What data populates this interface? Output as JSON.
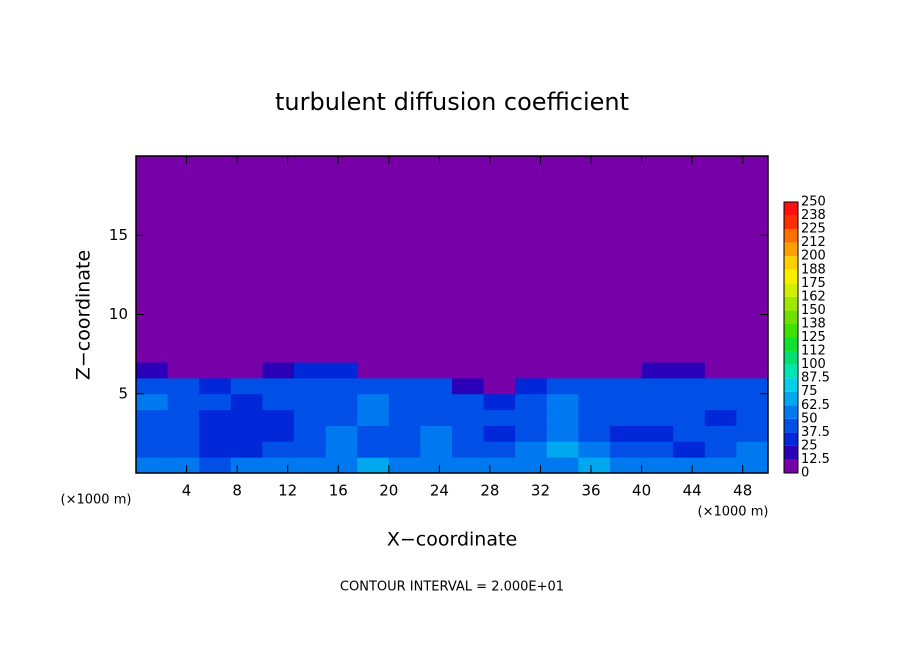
{
  "chart_data": {
    "type": "contour",
    "title": "turbulent diffusion coefficient",
    "x_label": "X−coordinate",
    "y_label": "Z−coordinate",
    "x_unit_label": "(×1000 m)",
    "y_unit_label": "(×1000 m)",
    "footer": "CONTOUR INTERVAL = 2.000E+01",
    "xlim": [
      0,
      50
    ],
    "ylim": [
      0,
      20
    ],
    "xticks": [
      4,
      8,
      12,
      16,
      20,
      24,
      28,
      32,
      36,
      40,
      44,
      48
    ],
    "yticks": [
      5,
      10,
      15
    ],
    "colorbar": {
      "levels": [
        0,
        12.5,
        25,
        37.5,
        50,
        62.5,
        75,
        87.5,
        100,
        {
          "value": 112.5,
          "label": "112"
        },
        125,
        {
          "value": 137.5,
          "label": "138"
        },
        150,
        {
          "value": 162.5,
          "label": "162"
        },
        175,
        {
          "value": 187.5,
          "label": "188"
        },
        200,
        {
          "value": 212.5,
          "label": "212"
        },
        225,
        {
          "value": 237.5,
          "label": "238"
        },
        250
      ],
      "colors": [
        "#7800a8",
        "#2a00b8",
        "#0028d8",
        "#0050e8",
        "#0078f0",
        "#00a8f0",
        "#00d0e8",
        "#00e8b0",
        "#00e070",
        "#10e030",
        "#40e000",
        "#70e000",
        "#a0e800",
        "#d0f000",
        "#f8f000",
        "#ffd000",
        "#ffa000",
        "#ff7000",
        "#ff3000",
        "#ff1010",
        "#f07070"
      ]
    },
    "field": {
      "x": [
        0,
        2.5,
        5,
        7.5,
        10,
        12.5,
        15,
        17.5,
        20,
        22.5,
        25,
        27.5,
        30,
        32.5,
        35,
        37.5,
        40,
        42.5,
        45,
        47.5,
        50
      ],
      "z": [
        0,
        1,
        2,
        3,
        4,
        5,
        6,
        7,
        20
      ],
      "values": [
        [
          55,
          50,
          45,
          60,
          55,
          50,
          60,
          65,
          55,
          60,
          50,
          55,
          60,
          55,
          65,
          60,
          55,
          50,
          55,
          60
        ],
        [
          40,
          45,
          35,
          30,
          38,
          45,
          50,
          40,
          45,
          55,
          40,
          45,
          50,
          65,
          55,
          45,
          40,
          35,
          45,
          50
        ],
        [
          45,
          40,
          30,
          32,
          35,
          40,
          55,
          45,
          40,
          50,
          45,
          35,
          45,
          60,
          40,
          35,
          32,
          40,
          38,
          45
        ],
        [
          42,
          48,
          35,
          30,
          33,
          42,
          45,
          55,
          48,
          42,
          45,
          40,
          38,
          55,
          45,
          38,
          40,
          42,
          35,
          40
        ],
        [
          50,
          45,
          40,
          35,
          40,
          45,
          40,
          55,
          45,
          40,
          40,
          35,
          45,
          50,
          48,
          42,
          45,
          40,
          45,
          48
        ],
        [
          45,
          40,
          30,
          40,
          45,
          40,
          45,
          42,
          45,
          45,
          20,
          10,
          30,
          45,
          45,
          40,
          45,
          45,
          40,
          45
        ],
        [
          15,
          5,
          10,
          10,
          20,
          30,
          30,
          10,
          5,
          5,
          0,
          0,
          0,
          5,
          5,
          10,
          20,
          15,
          10,
          10
        ],
        [
          0,
          0,
          0,
          0,
          0,
          0,
          0,
          0,
          0,
          0,
          0,
          0,
          0,
          0,
          0,
          0,
          0,
          0,
          0,
          0
        ]
      ]
    }
  }
}
